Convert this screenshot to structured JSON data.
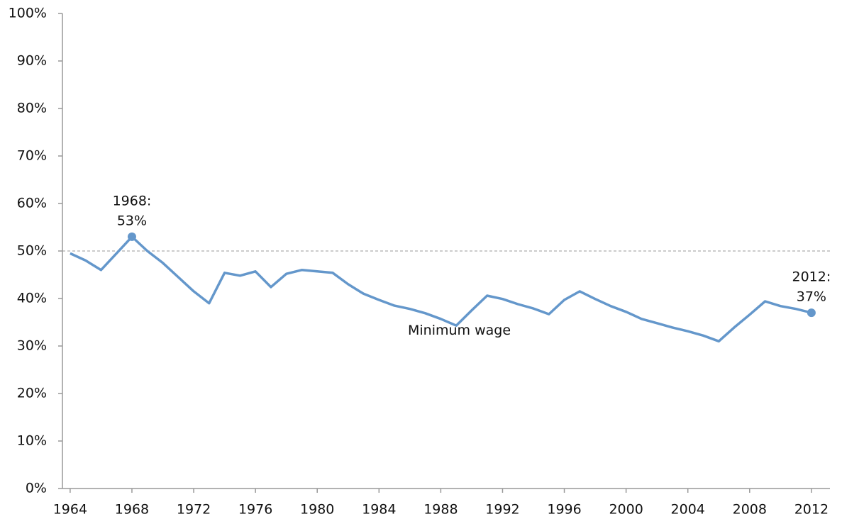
{
  "chart_data": {
    "type": "line",
    "x": [
      1964,
      1965,
      1966,
      1967,
      1968,
      1969,
      1970,
      1971,
      1972,
      1973,
      1974,
      1975,
      1976,
      1977,
      1978,
      1979,
      1980,
      1981,
      1982,
      1983,
      1984,
      1985,
      1986,
      1987,
      1988,
      1989,
      1990,
      1991,
      1992,
      1993,
      1994,
      1995,
      1996,
      1997,
      1998,
      1999,
      2000,
      2001,
      2002,
      2003,
      2004,
      2005,
      2006,
      2007,
      2008,
      2009,
      2010,
      2011,
      2012
    ],
    "series": [
      {
        "name": "Minimum wage",
        "color": "#6497cb",
        "values": [
          49.5,
          48,
          46,
          49.5,
          53,
          50,
          47.5,
          44.5,
          41.5,
          39,
          45.4,
          44.8,
          45.7,
          42.4,
          45.2,
          46,
          45.7,
          45.4,
          43,
          41,
          39.7,
          38.5,
          37.8,
          36.9,
          35.7,
          34.3,
          37.5,
          40.6,
          39.9,
          38.8,
          37.9,
          36.7,
          39.7,
          41.5,
          39.9,
          38.4,
          37.2,
          35.7,
          34.8,
          33.9,
          33.1,
          32.2,
          31,
          33.9,
          36.6,
          39.4,
          38.4,
          37.8,
          37
        ]
      }
    ],
    "xlim": [
      1963.5,
      2013.2
    ],
    "xticks": [
      1964,
      1968,
      1972,
      1976,
      1980,
      1984,
      1988,
      1992,
      1996,
      2000,
      2004,
      2008,
      2012
    ],
    "ylim": [
      0,
      100
    ],
    "yticks": [
      {
        "value": 0,
        "label": "0%"
      },
      {
        "value": 10,
        "label": "10%"
      },
      {
        "value": 20,
        "label": "20%"
      },
      {
        "value": 30,
        "label": "30%"
      },
      {
        "value": 40,
        "label": "40%"
      },
      {
        "value": 50,
        "label": "50%"
      },
      {
        "value": 60,
        "label": "60%"
      },
      {
        "value": 70,
        "label": "70%"
      },
      {
        "value": 80,
        "label": "80%"
      },
      {
        "value": 90,
        "label": "90%"
      },
      {
        "value": 100,
        "label": "100%"
      }
    ],
    "reference_line": 50,
    "grid": false,
    "annotations": [
      {
        "x": 1968,
        "y": 53,
        "label": [
          "1968:",
          "53%"
        ]
      },
      {
        "x": 2012,
        "y": 37,
        "label": [
          "2012:",
          "37%"
        ]
      }
    ]
  }
}
